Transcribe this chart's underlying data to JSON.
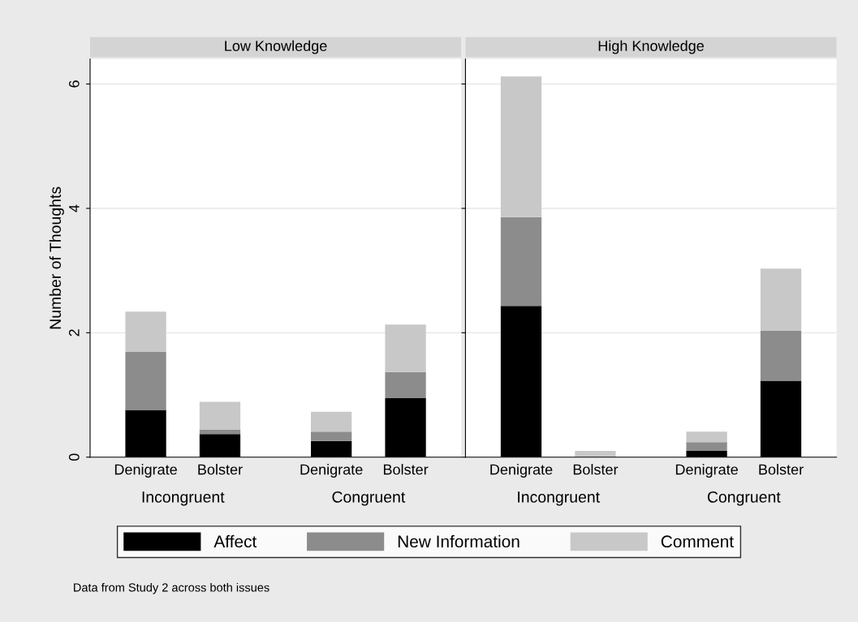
{
  "chart_data": [
    {
      "type": "bar",
      "title": "Low Knowledge",
      "ylabel": "Number of Thoughts",
      "categories": [
        "Denigrate",
        "Bolster",
        "Denigrate",
        "Bolster"
      ],
      "stacked": true,
      "ylim": [
        0,
        6.4
      ],
      "yticks": [
        0,
        2,
        4,
        6
      ],
      "grid": "y",
      "legend": "bottom",
      "annotations": [
        "Incongruent",
        "Congruent",
        "Data from Study 2 across both issues"
      ],
      "series": [
        {
          "name": "Affect",
          "color": "#000000",
          "values": [
            0.76,
            0.37,
            0.26,
            0.95
          ]
        },
        {
          "name": "New Information",
          "color": "#8c8c8c",
          "values": [
            0.93,
            0.07,
            0.15,
            0.42
          ]
        },
        {
          "name": "Comment",
          "color": "#c8c8c8",
          "values": [
            0.65,
            0.45,
            0.32,
            0.76
          ]
        }
      ]
    },
    {
      "type": "bar",
      "title": "High Knowledge",
      "categories": [
        "Denigrate",
        "Bolster",
        "Denigrate",
        "Bolster"
      ],
      "stacked": true,
      "ylim": [
        0,
        6.4
      ],
      "yticks": [
        0,
        2,
        4,
        6
      ],
      "grid": "y",
      "tick_labels": "x",
      "annotations": [
        "Incongruent",
        "Congruent"
      ],
      "series": [
        {
          "color": "#000000",
          "values": [
            2.43,
            0.0,
            0.1,
            1.23
          ]
        },
        {
          "color": "#8c8c8c",
          "values": [
            1.43,
            0.0,
            0.14,
            0.8
          ]
        },
        {
          "color": "#c8c8c8",
          "values": [
            2.26,
            0.1,
            0.17,
            1.0
          ]
        }
      ]
    }
  ]
}
